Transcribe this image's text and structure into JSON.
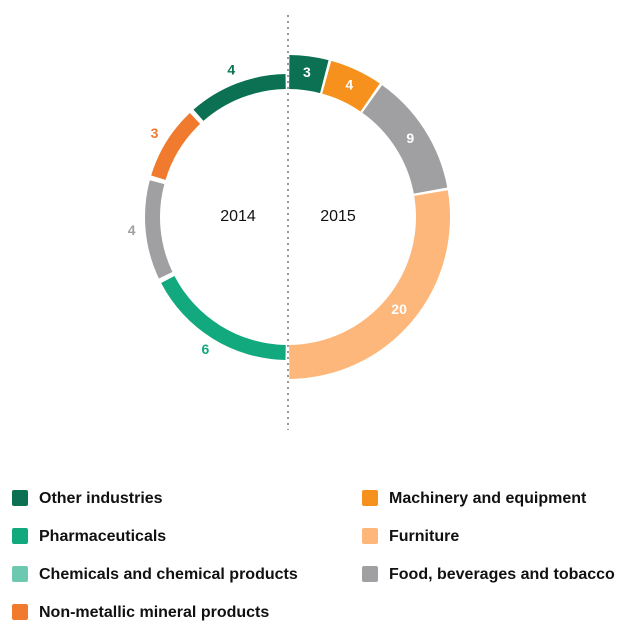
{
  "chart_data": {
    "type": "split-donut",
    "categories": [
      "Other industries",
      "Pharmaceuticals",
      "Chemicals and chemical products",
      "Non-metallic mineral products",
      "Machinery and equipment",
      "Furniture",
      "Food, beverages and tobacco"
    ],
    "colors": [
      "#0b7152",
      "#12a97f",
      "#6cc9b0",
      "#f07a2e",
      "#f6911e",
      "#fdb77a",
      "#a0a0a3"
    ],
    "series": [
      {
        "name": "2014",
        "values": [
          4,
          6,
          null,
          3,
          null,
          null,
          4
        ]
      },
      {
        "name": "2015",
        "values": [
          3,
          null,
          null,
          null,
          4,
          20,
          9
        ]
      }
    ]
  }
}
